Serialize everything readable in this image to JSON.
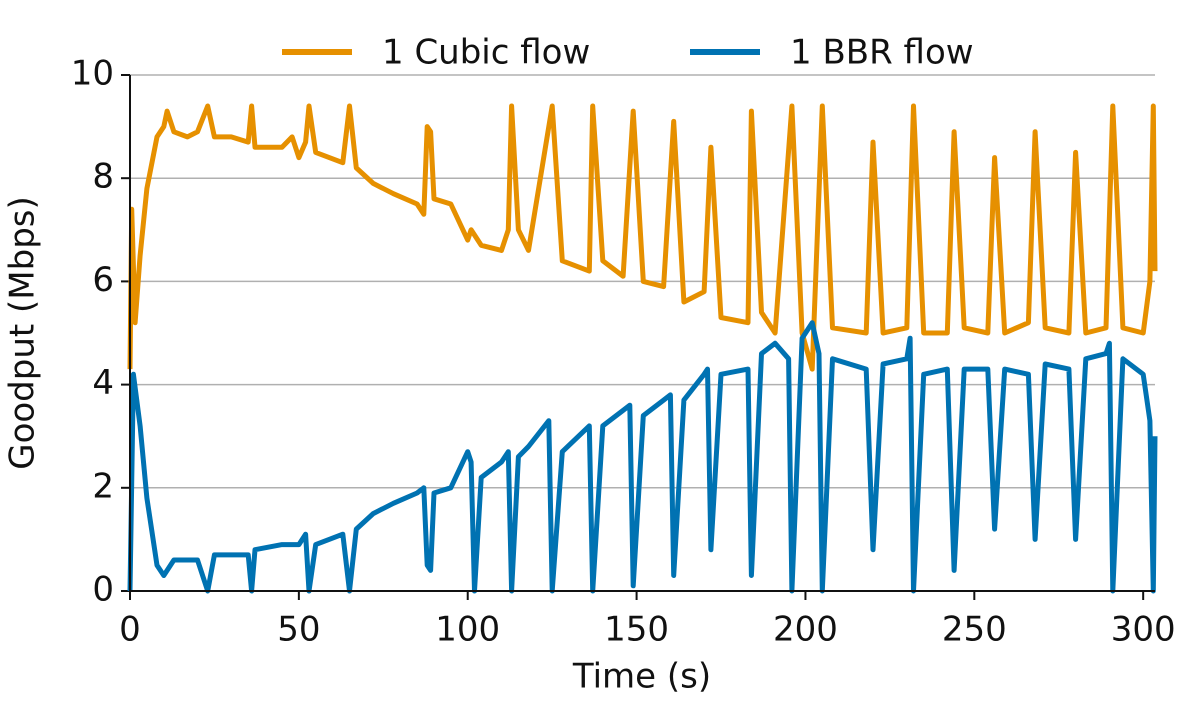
{
  "chart_data": {
    "type": "line",
    "xlabel": "Time (s)",
    "ylabel": "Goodput (Mbps)",
    "xlim": [
      0,
      303.5
    ],
    "xticks": [
      0,
      50,
      100,
      150,
      200,
      250,
      300
    ],
    "ylim": [
      0,
      10
    ],
    "yticks": [
      0,
      2,
      4,
      6,
      8,
      10
    ],
    "grid": true,
    "legend": "top",
    "series": [
      {
        "name": "1 Cubic flow",
        "color": "#e69000",
        "x": [
          0,
          0.5,
          1.5,
          3,
          5,
          8,
          10,
          11,
          13,
          17,
          20,
          23,
          25,
          30,
          35,
          36,
          37,
          45,
          48,
          50,
          52,
          53,
          55,
          63,
          65,
          67,
          72,
          78,
          85,
          87,
          88,
          89,
          90,
          95,
          100,
          101,
          104,
          110,
          112,
          113,
          115,
          118,
          125,
          128,
          136,
          137,
          140,
          146,
          149,
          152,
          158,
          161,
          164,
          170,
          172,
          175,
          183,
          184,
          187,
          191,
          196,
          199,
          202,
          205,
          208,
          218,
          220,
          223,
          230,
          232,
          235,
          242,
          244,
          247,
          254,
          256,
          259,
          266,
          268,
          271,
          278,
          280,
          283,
          289,
          291,
          294,
          300,
          302,
          303,
          303.5
        ],
        "values": [
          4.3,
          7.4,
          5.2,
          6.5,
          7.8,
          8.8,
          9.0,
          9.3,
          8.9,
          8.8,
          8.9,
          9.4,
          8.8,
          8.8,
          8.7,
          9.4,
          8.6,
          8.6,
          8.8,
          8.4,
          8.7,
          9.4,
          8.5,
          8.3,
          9.4,
          8.2,
          7.9,
          7.7,
          7.5,
          7.3,
          9.0,
          8.9,
          7.6,
          7.5,
          6.8,
          7.0,
          6.7,
          6.6,
          7.0,
          9.4,
          7.0,
          6.6,
          9.4,
          6.4,
          6.2,
          9.4,
          6.4,
          6.1,
          9.3,
          6.0,
          5.9,
          9.1,
          5.6,
          5.8,
          8.6,
          5.3,
          5.2,
          9.3,
          5.4,
          5.0,
          9.4,
          5.0,
          4.3,
          9.4,
          5.1,
          5.0,
          8.7,
          5.0,
          5.1,
          9.4,
          5.0,
          5.0,
          8.9,
          5.1,
          5.0,
          8.4,
          5.0,
          5.2,
          8.9,
          5.1,
          5.0,
          8.5,
          5.0,
          5.1,
          9.4,
          5.1,
          5.0,
          6.0,
          9.4,
          6.2
        ]
      },
      {
        "name": "1 BBR flow",
        "color": "#0072b2",
        "x": [
          0,
          1,
          3,
          5,
          8,
          10,
          13,
          20,
          23,
          25,
          30,
          35,
          36,
          37,
          45,
          50,
          52,
          53,
          55,
          63,
          65,
          67,
          72,
          78,
          85,
          87,
          88,
          89,
          90,
          95,
          100,
          101,
          102,
          104,
          110,
          112,
          113,
          115,
          118,
          124,
          125,
          128,
          136,
          137,
          140,
          146,
          148,
          149,
          152,
          158,
          160,
          161,
          164,
          170,
          171,
          172,
          175,
          183,
          184,
          187,
          191,
          195,
          196,
          199,
          202,
          204,
          205,
          208,
          218,
          220,
          223,
          230,
          231,
          232,
          235,
          242,
          244,
          247,
          254,
          256,
          259,
          266,
          268,
          271,
          278,
          280,
          283,
          289,
          290,
          291,
          294,
          300,
          302,
          303,
          303.5
        ],
        "values": [
          0,
          4.2,
          3.2,
          1.8,
          0.5,
          0.3,
          0.6,
          0.6,
          0,
          0.7,
          0.7,
          0.7,
          0,
          0.8,
          0.9,
          0.9,
          1.1,
          0,
          0.9,
          1.1,
          0,
          1.2,
          1.5,
          1.7,
          1.9,
          2.0,
          0.5,
          0.4,
          1.9,
          2.0,
          2.7,
          2.5,
          0,
          2.2,
          2.5,
          2.7,
          0,
          2.6,
          2.8,
          3.3,
          0,
          2.7,
          3.2,
          0,
          3.2,
          3.5,
          3.6,
          0.1,
          3.4,
          3.7,
          3.8,
          0.3,
          3.7,
          4.2,
          4.3,
          0.8,
          4.2,
          4.3,
          0.3,
          4.6,
          4.8,
          4.5,
          0,
          4.9,
          5.2,
          4.6,
          0,
          4.5,
          4.3,
          0.8,
          4.4,
          4.5,
          4.9,
          0,
          4.2,
          4.3,
          0.4,
          4.3,
          4.3,
          1.2,
          4.3,
          4.2,
          1.0,
          4.4,
          4.3,
          1.0,
          4.5,
          4.6,
          4.8,
          0,
          4.5,
          4.2,
          3.3,
          0,
          3.0
        ]
      }
    ]
  }
}
